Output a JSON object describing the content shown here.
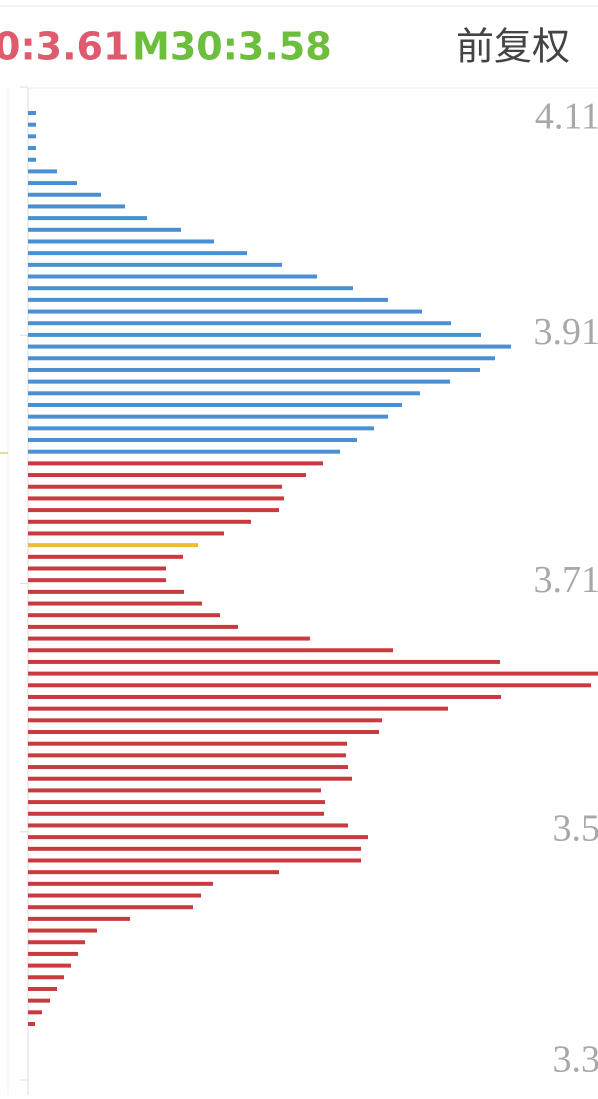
{
  "header": {
    "ma_left": "0:3.61",
    "ma_right": "M30:3.58",
    "adjust": "前复权"
  },
  "chart_data": {
    "type": "hbar",
    "xlim": [
      0,
      570
    ],
    "ylim": [
      3.31,
      4.11
    ],
    "yticks": [
      4.11,
      3.91,
      3.71,
      {
        "value": 3.51,
        "label": "3.5"
      },
      {
        "value": 3.31,
        "label": "3.3"
      }
    ],
    "series": [
      {
        "color": "#4a8fd4",
        "values": [
          8,
          8,
          8,
          8,
          8,
          29,
          49,
          73,
          97,
          119,
          153,
          186,
          219,
          254,
          289,
          325,
          360,
          394,
          423,
          453,
          483,
          467,
          452,
          422,
          392,
          374,
          360,
          346,
          329,
          312,
          null,
          null,
          null,
          null,
          null,
          null,
          null,
          null,
          null,
          null,
          null,
          null,
          null,
          null,
          null,
          null,
          null,
          null,
          null,
          null,
          null,
          null,
          null,
          null,
          null,
          null,
          null,
          null,
          null,
          null,
          null,
          null,
          null,
          null,
          null,
          null,
          null,
          null,
          null,
          null,
          null,
          null,
          null,
          null,
          null,
          null,
          null,
          null,
          null
        ]
      },
      {
        "color": "#c93a3e",
        "values": [
          null,
          null,
          null,
          null,
          null,
          null,
          null,
          null,
          null,
          null,
          null,
          null,
          null,
          null,
          null,
          null,
          null,
          null,
          null,
          null,
          null,
          null,
          null,
          null,
          null,
          null,
          null,
          null,
          null,
          null,
          295,
          278,
          254,
          256,
          251,
          223,
          196,
          null,
          155,
          138,
          138,
          156,
          174,
          192,
          210,
          282,
          365,
          472,
          570,
          563,
          473,
          420,
          354,
          351,
          319,
          318,
          320,
          324,
          293,
          297,
          296,
          320,
          340,
          333,
          333,
          251,
          185,
          173,
          165,
          102,
          69,
          57,
          50,
          43,
          36,
          29,
          22,
          14,
          7
        ]
      },
      {
        "color": "#f0b93a",
        "values": [
          null,
          null,
          null,
          null,
          null,
          null,
          null,
          null,
          null,
          null,
          null,
          null,
          null,
          null,
          null,
          null,
          null,
          null,
          null,
          null,
          null,
          null,
          null,
          null,
          null,
          null,
          null,
          null,
          null,
          null,
          null,
          null,
          null,
          null,
          null,
          null,
          null,
          170,
          null,
          null,
          null,
          null,
          null,
          null,
          null,
          null,
          null,
          null,
          null,
          null,
          null,
          null,
          null,
          null,
          null,
          null,
          null,
          null,
          null,
          null,
          null,
          null,
          null,
          null,
          null,
          null,
          null,
          null,
          null,
          null,
          null,
          null,
          null,
          null,
          null,
          null,
          null,
          null,
          null
        ]
      }
    ]
  }
}
